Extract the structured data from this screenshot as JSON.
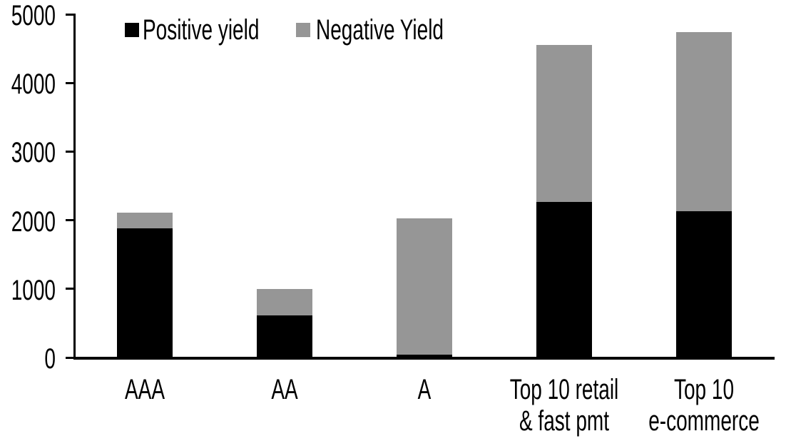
{
  "chart_data": {
    "type": "bar",
    "stacked": true,
    "categories": [
      "AAA",
      "AA",
      "A",
      "Top 10 retail & fast pmt",
      "Top 10 e-commerce"
    ],
    "category_label_lines": [
      [
        "AAA"
      ],
      [
        "AA"
      ],
      [
        "A"
      ],
      [
        "Top 10 retail",
        "& fast pmt"
      ],
      [
        "Top 10",
        "e-commerce"
      ]
    ],
    "series": [
      {
        "name": "Positive yield",
        "color": "#000000",
        "values": [
          1880,
          610,
          40,
          2270,
          2130
        ]
      },
      {
        "name": "Negative Yield",
        "color": "#969696",
        "values": [
          230,
          390,
          1990,
          2280,
          2610
        ]
      }
    ],
    "totals": [
      2110,
      1000,
      2030,
      4550,
      4740
    ],
    "ylim": [
      0,
      5000
    ],
    "yticks": [
      0,
      1000,
      2000,
      3000,
      4000,
      5000
    ],
    "legend_position": "top-inside",
    "grid": false,
    "axis_color": "#000000",
    "background_color": "#ffffff"
  }
}
